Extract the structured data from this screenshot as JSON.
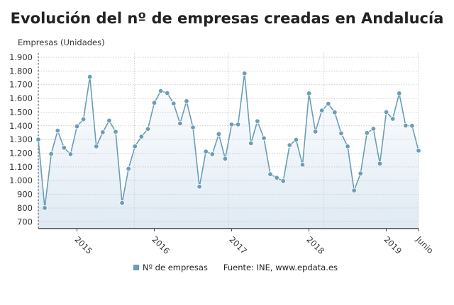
{
  "chart_data": {
    "type": "area",
    "title": "Evolución del nº de empresas creadas en Andalucía",
    "ylabel": "Empresas (Unidades)",
    "xlabel": "",
    "ylim": [
      650,
      1900
    ],
    "yticks": [
      700,
      800,
      900,
      1000,
      1100,
      1200,
      1300,
      1400,
      1500,
      1600,
      1700,
      1800,
      1900
    ],
    "ytick_labels": [
      "700",
      "800",
      "900",
      "1.000",
      "1.100",
      "1.200",
      "1.300",
      "1.400",
      "1.500",
      "1.600",
      "1.700",
      "1.800",
      "1.900"
    ],
    "x_start": "2014-07",
    "x_end": "2019-06",
    "xtick_labels": [
      {
        "label": "2015",
        "month": "2015-01"
      },
      {
        "label": "2016",
        "month": "2016-01"
      },
      {
        "label": "2017",
        "month": "2017-01"
      },
      {
        "label": "2018",
        "month": "2018-01"
      },
      {
        "label": "2019",
        "month": "2019-01"
      },
      {
        "label": "Junio",
        "month": "2019-06"
      }
    ],
    "grid": true,
    "series": [
      {
        "name": "Nº de empresas",
        "color": "#6b9db6",
        "values": [
          1300,
          800,
          1195,
          1365,
          1240,
          1193,
          1396,
          1448,
          1757,
          1250,
          1353,
          1438,
          1357,
          837,
          1087,
          1250,
          1321,
          1377,
          1568,
          1654,
          1639,
          1563,
          1417,
          1580,
          1388,
          956,
          1212,
          1193,
          1340,
          1160,
          1410,
          1410,
          1783,
          1273,
          1434,
          1310,
          1047,
          1021,
          997,
          1259,
          1298,
          1116,
          1637,
          1358,
          1512,
          1561,
          1498,
          1345,
          1250,
          928,
          1052,
          1348,
          1379,
          1124,
          1500,
          1451,
          1637,
          1402,
          1400,
          1219
        ]
      }
    ],
    "legend_position": "bottom",
    "source": "Fuente: INE, www.epdata.es"
  }
}
